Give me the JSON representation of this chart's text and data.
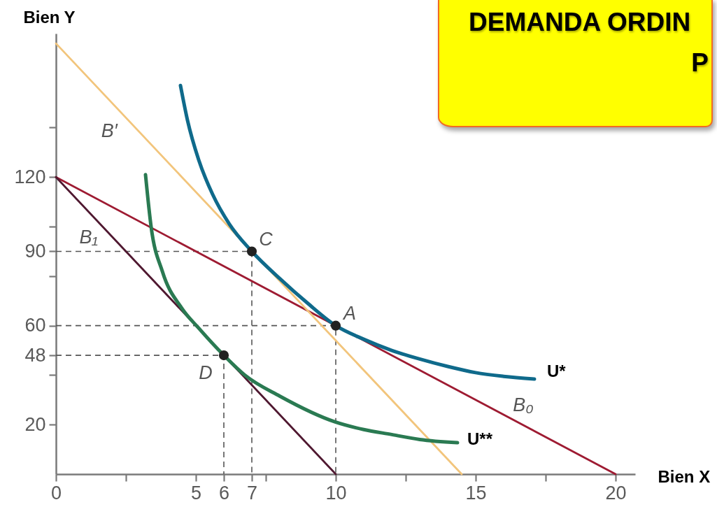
{
  "chart_data": {
    "type": "line",
    "title": "DEMANDA ORDIN",
    "subtitle": "P",
    "xlabel": "Bien X",
    "ylabel": "Bien Y",
    "xlim": [
      0,
      20.7
    ],
    "ylim": [
      0,
      178
    ],
    "xticks": [
      0,
      {
        "value": 2.5,
        "label": null
      },
      5,
      6,
      7,
      {
        "value": 7.5,
        "label": null
      },
      10,
      {
        "value": 12.5,
        "label": null
      },
      15,
      {
        "value": 17.5,
        "label": null
      },
      20
    ],
    "yticks": [
      20,
      {
        "value": 40,
        "label": null
      },
      48,
      60,
      {
        "value": 80,
        "label": null
      },
      90,
      {
        "value": 100,
        "label": null
      },
      120,
      {
        "value": 140,
        "label": null
      }
    ],
    "series": [
      {
        "color": "#555555",
        "line_style": "dashed",
        "x": [
          0,
          7,
          7
        ],
        "values": [
          90,
          90,
          0
        ]
      },
      {
        "color": "#555555",
        "line_style": "dashed",
        "x": [
          0,
          10,
          10
        ],
        "values": [
          60,
          60,
          0
        ]
      },
      {
        "color": "#555555",
        "line_style": "dashed",
        "x": [
          0,
          6,
          6
        ],
        "values": [
          48,
          48,
          0
        ]
      },
      {
        "name": "B₀",
        "color": "#9e1b32",
        "x": [
          0,
          20
        ],
        "values": [
          120,
          0
        ]
      },
      {
        "name": "B₁",
        "color": "#4f1830",
        "x": [
          0,
          10
        ],
        "values": [
          120,
          0
        ]
      },
      {
        "name": "B′",
        "color": "#f2c57c",
        "x": [
          0,
          14.5
        ],
        "values": [
          174,
          0
        ]
      },
      {
        "name": "U**",
        "color": "#2a7a52",
        "x": [
          3.2,
          3.4,
          3.8,
          4.5,
          5.1,
          6,
          6.75,
          8,
          10,
          11,
          12,
          13,
          14.35
        ],
        "values": [
          121,
          100,
          82,
          67,
          59,
          48,
          40,
          31.5,
          21,
          18,
          16,
          14,
          12.7
        ]
      },
      {
        "name": "U*",
        "color": "#0f6a8b",
        "x": [
          4.45,
          4.7,
          5.1,
          5.6,
          6.2,
          7,
          8,
          9,
          10,
          11,
          12,
          13,
          14,
          15,
          16,
          17.1
        ],
        "values": [
          157,
          143,
          127,
          113,
          101,
          90,
          79,
          69,
          60,
          54.5,
          50,
          46.5,
          43.5,
          41,
          39.5,
          38.4
        ]
      },
      {
        "type": "scatter",
        "marker": "circle",
        "color": "#222222",
        "x": [
          7,
          10,
          6
        ],
        "values": [
          90,
          60,
          48
        ]
      }
    ],
    "annotations": [
      {
        "text": "C",
        "x": 7,
        "y": 90
      },
      {
        "text": "A",
        "x": 10,
        "y": 60
      },
      {
        "text": "D",
        "x": 6,
        "y": 48
      }
    ]
  }
}
